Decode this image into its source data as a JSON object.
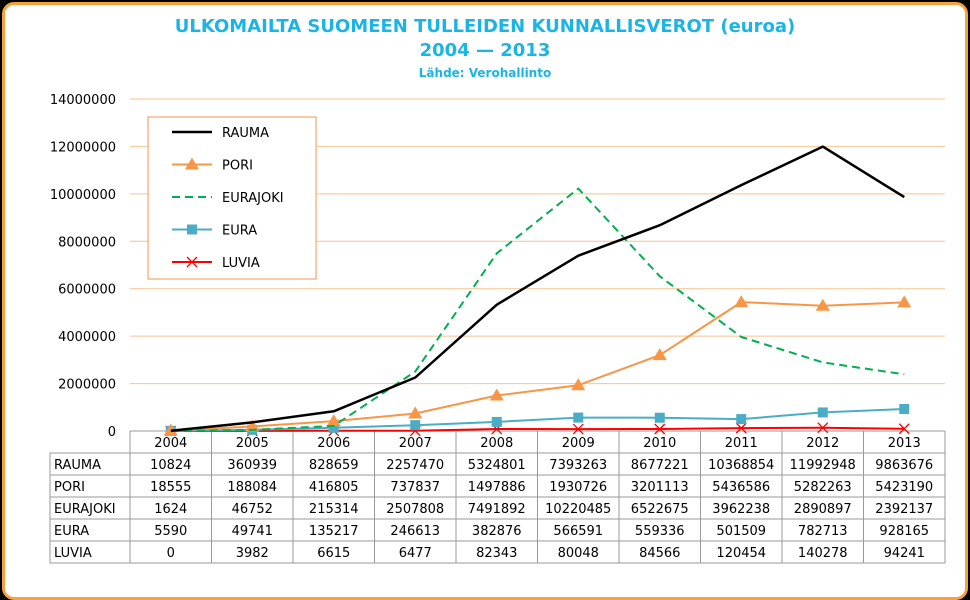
{
  "chart_data": {
    "type": "line",
    "title": "ULKOMAILTA SUOMEEN TULLEIDEN KUNNALLISVEROT (euroa)",
    "subtitle": "2004 — 2013",
    "source": "Lähde: Verohallinto",
    "categories": [
      "2004",
      "2005",
      "2006",
      "2007",
      "2008",
      "2009",
      "2010",
      "2011",
      "2012",
      "2013"
    ],
    "ylim": [
      0,
      14000000
    ],
    "yticks": [
      "0",
      "2000000",
      "4000000",
      "6000000",
      "8000000",
      "10000000",
      "12000000",
      "14000000"
    ],
    "grid": true,
    "legend_position": "top-left",
    "series": [
      {
        "name": "RAUMA",
        "color": "#000000",
        "style": "solid",
        "marker": "none",
        "values": [
          10824,
          360939,
          828659,
          2257470,
          5324801,
          7393263,
          8677221,
          10368854,
          11992948,
          9863676
        ]
      },
      {
        "name": "PORI",
        "color": "#f79646",
        "style": "solid",
        "marker": "triangle",
        "values": [
          18555,
          188084,
          416805,
          737837,
          1497886,
          1930726,
          3201113,
          5436586,
          5282263,
          5423190
        ]
      },
      {
        "name": "EURAJOKI",
        "color": "#00b050",
        "style": "dashed",
        "marker": "none",
        "values": [
          1624,
          46752,
          215314,
          2507808,
          7491892,
          10220485,
          6522675,
          3962238,
          2890897,
          2392137
        ]
      },
      {
        "name": "EURA",
        "color": "#4bacc6",
        "style": "solid",
        "marker": "square",
        "values": [
          5590,
          49741,
          135217,
          246613,
          382876,
          566591,
          559336,
          501509,
          782713,
          928165
        ]
      },
      {
        "name": "LUVIA",
        "color": "#ff0000",
        "style": "solid",
        "marker": "x",
        "values": [
          0,
          3982,
          6615,
          6477,
          82343,
          80048,
          84566,
          120454,
          140278,
          94241
        ]
      }
    ]
  }
}
